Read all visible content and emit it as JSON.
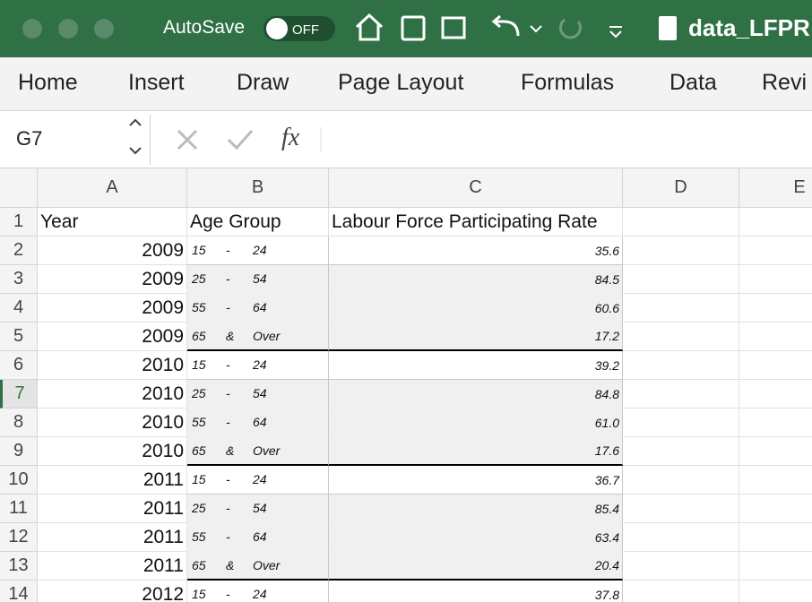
{
  "titlebar": {
    "autosave": "AutoSave",
    "toggle": "OFF",
    "filename": "data_LFPR"
  },
  "tabs": [
    "Home",
    "Insert",
    "Draw",
    "Page Layout",
    "Formulas",
    "Data",
    "Revi"
  ],
  "formula_bar": {
    "name_box": "G7",
    "fx": "fx"
  },
  "sheet": {
    "columns": [
      "A",
      "B",
      "C",
      "D",
      "E"
    ],
    "row_numbers": [
      "1",
      "2",
      "3",
      "4",
      "5",
      "6",
      "7",
      "8",
      "9",
      "10",
      "11",
      "12",
      "13",
      "14"
    ],
    "header": [
      "Year",
      "Age Group",
      "Labour Force Participating Rate"
    ],
    "rows": [
      {
        "year": "2009",
        "age": [
          "15",
          "-",
          "24"
        ],
        "rate": "35.6"
      },
      {
        "year": "2009",
        "age": [
          "25",
          "-",
          "54"
        ],
        "rate": "84.5"
      },
      {
        "year": "2009",
        "age": [
          "55",
          "-",
          "64"
        ],
        "rate": "60.6"
      },
      {
        "year": "2009",
        "age": [
          "65",
          "&",
          "Over"
        ],
        "rate": "17.2"
      },
      {
        "year": "2010",
        "age": [
          "15",
          "-",
          "24"
        ],
        "rate": "39.2"
      },
      {
        "year": "2010",
        "age": [
          "25",
          "-",
          "54"
        ],
        "rate": "84.8"
      },
      {
        "year": "2010",
        "age": [
          "55",
          "-",
          "64"
        ],
        "rate": "61.0"
      },
      {
        "year": "2010",
        "age": [
          "65",
          "&",
          "Over"
        ],
        "rate": "17.6"
      },
      {
        "year": "2011",
        "age": [
          "15",
          "-",
          "24"
        ],
        "rate": "36.7"
      },
      {
        "year": "2011",
        "age": [
          "25",
          "-",
          "54"
        ],
        "rate": "85.4"
      },
      {
        "year": "2011",
        "age": [
          "55",
          "-",
          "64"
        ],
        "rate": "63.4"
      },
      {
        "year": "2011",
        "age": [
          "65",
          "&",
          "Over"
        ],
        "rate": "20.4"
      },
      {
        "year": "2012",
        "age": [
          "15",
          "-",
          "24"
        ],
        "rate": "37.8"
      }
    ]
  }
}
